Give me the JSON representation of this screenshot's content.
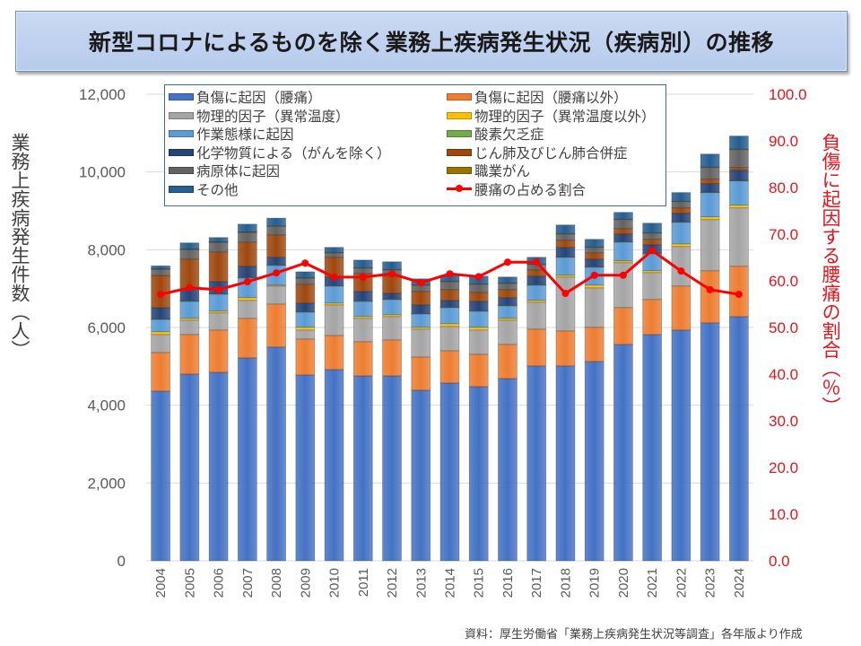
{
  "title": "新型コロナによるものを除く業務上疾病発生状況（疾病別）の推移",
  "source_note": "資料：厚生労働省「業務上疾病発生状況等調査」各年版より作成",
  "chart_data": {
    "type": "bar",
    "stacked": true,
    "title": "新型コロナによるものを除く業務上疾病発生状況（疾病別）の推移",
    "xlabel": "",
    "ylabel": "業務上疾病発生件数（人）",
    "y2label": "負傷に起因する腰痛の割合（％）",
    "ylim": [
      0,
      12000
    ],
    "y2lim": [
      0,
      100
    ],
    "yticks": [
      "0",
      "2,000",
      "4,000",
      "6,000",
      "8,000",
      "10,000",
      "12,000"
    ],
    "y2ticks": [
      "0.0",
      "10.0",
      "20.0",
      "30.0",
      "40.0",
      "50.0",
      "60.0",
      "70.0",
      "80.0",
      "90.0",
      "100.0"
    ],
    "grid": true,
    "legend_position": "top-center",
    "categories": [
      "2004",
      "2005",
      "2006",
      "2007",
      "2008",
      "2009",
      "2010",
      "2011",
      "2012",
      "2013",
      "2014",
      "2015",
      "2016",
      "2017",
      "2018",
      "2019",
      "2020",
      "2021",
      "2022",
      "2023",
      "2024"
    ],
    "series": [
      {
        "name": "負傷に起因（腰痛）",
        "color": "#4472c4",
        "values": [
          4365,
          4804,
          4850,
          5219,
          5497,
          4780,
          4919,
          4757,
          4757,
          4388,
          4573,
          4480,
          4688,
          5012,
          5012,
          5127,
          5566,
          5820,
          5935,
          6120,
          6280
        ]
      },
      {
        "name": "負傷に起因（腰痛以外）",
        "color": "#ed7d31",
        "values": [
          993,
          1016,
          1085,
          1017,
          1108,
          924,
          877,
          878,
          924,
          854,
          831,
          832,
          878,
          946,
          900,
          878,
          947,
          901,
          1132,
          1340,
          1295
        ]
      },
      {
        "name": "物理的因子（異常温度）",
        "color": "#a5a5a5",
        "values": [
          462,
          369,
          439,
          462,
          462,
          231,
          786,
          601,
          601,
          716,
          624,
          623,
          623,
          693,
          1386,
          1015,
          1154,
          692,
          1016,
          1316,
          1501
        ]
      },
      {
        "name": "物理的因子（異常温度以外）",
        "color": "#ffc000",
        "values": [
          70,
          47,
          46,
          69,
          23,
          70,
          46,
          46,
          46,
          47,
          69,
          70,
          47,
          47,
          46,
          70,
          46,
          47,
          67,
          69,
          69
        ]
      },
      {
        "name": "作業態様に起因",
        "color": "#5b9bd5",
        "values": [
          320,
          438,
          439,
          508,
          508,
          392,
          439,
          392,
          393,
          346,
          416,
          415,
          323,
          392,
          462,
          462,
          485,
          438,
          557,
          625,
          625
        ]
      },
      {
        "name": "酸素欠乏症",
        "color": "#70ad47",
        "values": [
          10,
          10,
          10,
          10,
          10,
          10,
          10,
          10,
          10,
          10,
          10,
          10,
          10,
          10,
          10,
          10,
          10,
          10,
          10,
          10,
          10
        ]
      },
      {
        "name": "化学物質による（がんを除く）",
        "color": "#264478",
        "values": [
          290,
          314,
          313,
          290,
          198,
          221,
          221,
          244,
          151,
          221,
          175,
          244,
          198,
          221,
          244,
          198,
          198,
          221,
          221,
          220,
          266
        ]
      },
      {
        "name": "じん肺及びじん肺合併症",
        "color": "#9e480e",
        "values": [
          830,
          762,
          762,
          623,
          577,
          485,
          508,
          462,
          439,
          346,
          277,
          231,
          208,
          162,
          185,
          161,
          139,
          139,
          138,
          115,
          69
        ]
      },
      {
        "name": "病原体に起因",
        "color": "#636363",
        "values": [
          160,
          250,
          250,
          250,
          220,
          160,
          115,
          139,
          162,
          162,
          207,
          208,
          161,
          138,
          161,
          139,
          231,
          161,
          162,
          300,
          462
        ]
      },
      {
        "name": "職業がん",
        "color": "#997300",
        "values": [
          10,
          10,
          10,
          10,
          10,
          10,
          10,
          10,
          10,
          10,
          10,
          10,
          10,
          10,
          10,
          10,
          10,
          10,
          10,
          10,
          10
        ]
      },
      {
        "name": "その他",
        "color": "#255e91",
        "values": [
          75,
          156,
          110,
          200,
          200,
          150,
          130,
          195,
          197,
          152,
          152,
          198,
          152,
          175,
          221,
          198,
          175,
          244,
          222,
          335,
          337
        ]
      }
    ],
    "line_series": {
      "name": "腰痛の占める割合",
      "axis": "right",
      "color": "#ff0000",
      "values": [
        57.1,
        58.5,
        58.1,
        59.8,
        61.7,
        63.8,
        60.8,
        60.8,
        61.5,
        59.6,
        61.5,
        60.9,
        64.0,
        64.0,
        57.3,
        61.2,
        61.2,
        66.5,
        62.1,
        58.1,
        57.1
      ]
    }
  }
}
